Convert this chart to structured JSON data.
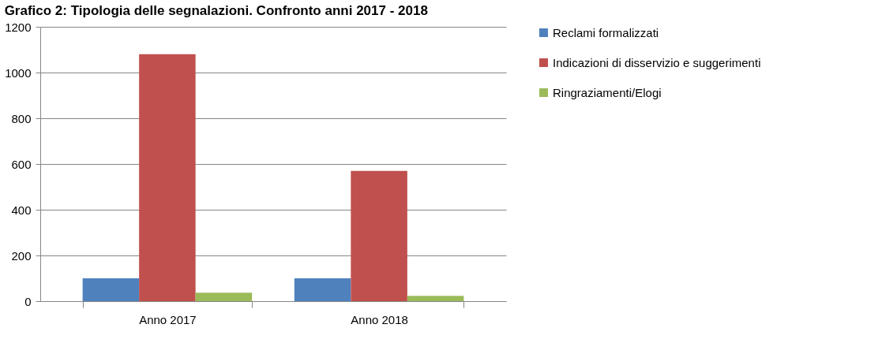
{
  "chart_data": {
    "type": "bar",
    "title": "Grafico 2: Tipologia delle segnalazioni. Confronto anni 2017 - 2018",
    "categories": [
      "Anno 2017",
      "Anno 2018"
    ],
    "series": [
      {
        "name": "Reclami formalizzati",
        "color": "#4f81bd",
        "values": [
          100,
          100
        ]
      },
      {
        "name": "Indicazioni di disservizio e suggerimenti",
        "color": "#c0504d",
        "values": [
          1080,
          570
        ]
      },
      {
        "name": "Ringraziamenti/Elogi",
        "color": "#9bbb59",
        "values": [
          37,
          23
        ]
      }
    ],
    "ylim": [
      0,
      1200
    ],
    "yticks": [
      0,
      200,
      400,
      600,
      800,
      1000,
      1200
    ],
    "grid": "y",
    "legend": "right"
  }
}
